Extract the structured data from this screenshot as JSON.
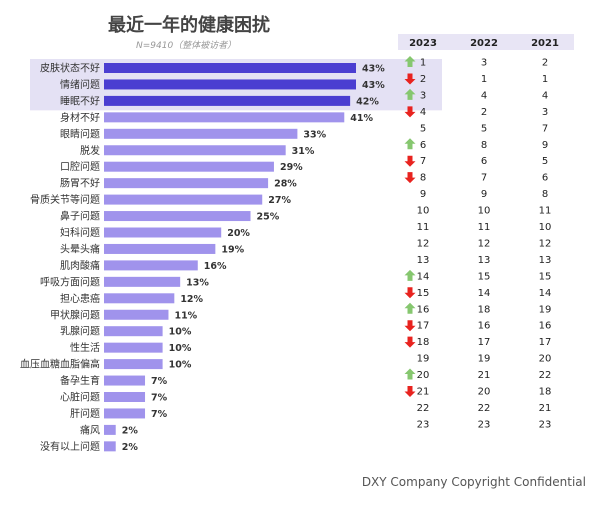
{
  "title": "最近一年的健康困扰",
  "subtitle": "N=9410（整体被访者）",
  "footer": "DXY Company Copyright Confidential",
  "colors": {
    "highlight_bar": "#4b3ed1",
    "bar": "#a093ec",
    "highlight_bg": "#e4e1f4",
    "header_bg": "#e8e5f5",
    "up": "#86c76f",
    "down": "#e8231f"
  },
  "chart_data": {
    "type": "bar",
    "orientation": "horizontal",
    "categories": [
      "皮肤状态不好",
      "情绪问题",
      "睡眠不好",
      "身材不好",
      "眼睛问题",
      "脱发",
      "口腔问题",
      "肠胃不好",
      "骨质关节等问题",
      "鼻子问题",
      "妇科问题",
      "头晕头痛",
      "肌肉酸痛",
      "呼吸方面问题",
      "担心患癌",
      "甲状腺问题",
      "乳腺问题",
      "性生活",
      "血压血糖血脂偏高",
      "备孕生育",
      "心脏问题",
      "肝问题",
      "痛风",
      "没有以上问题"
    ],
    "values": [
      43,
      43,
      42,
      41,
      33,
      31,
      29,
      28,
      27,
      25,
      20,
      19,
      16,
      13,
      12,
      11,
      10,
      10,
      10,
      7,
      7,
      7,
      2,
      2
    ],
    "value_labels": [
      "43%",
      "43%",
      "42%",
      "41%",
      "33%",
      "31%",
      "29%",
      "28%",
      "27%",
      "25%",
      "20%",
      "19%",
      "16%",
      "13%",
      "12%",
      "11%",
      "10%",
      "10%",
      "10%",
      "7%",
      "7%",
      "7%",
      "2%",
      "2%"
    ],
    "highlighted": [
      0,
      1,
      2
    ],
    "xlim": [
      0,
      43
    ]
  },
  "rank_table": {
    "headers": [
      "2023",
      "2022",
      "2021"
    ],
    "rows": [
      {
        "r2023": "1",
        "r2022": "3",
        "r2021": "2",
        "trend": "up"
      },
      {
        "r2023": "2",
        "r2022": "1",
        "r2021": "1",
        "trend": "down"
      },
      {
        "r2023": "3",
        "r2022": "4",
        "r2021": "4",
        "trend": "up"
      },
      {
        "r2023": "4",
        "r2022": "2",
        "r2021": "3",
        "trend": "down"
      },
      {
        "r2023": "5",
        "r2022": "5",
        "r2021": "7",
        "trend": "none"
      },
      {
        "r2023": "6",
        "r2022": "8",
        "r2021": "9",
        "trend": "up"
      },
      {
        "r2023": "7",
        "r2022": "6",
        "r2021": "5",
        "trend": "down"
      },
      {
        "r2023": "8",
        "r2022": "7",
        "r2021": "6",
        "trend": "down"
      },
      {
        "r2023": "9",
        "r2022": "9",
        "r2021": "8",
        "trend": "none"
      },
      {
        "r2023": "10",
        "r2022": "10",
        "r2021": "11",
        "trend": "none"
      },
      {
        "r2023": "11",
        "r2022": "11",
        "r2021": "10",
        "trend": "none"
      },
      {
        "r2023": "12",
        "r2022": "12",
        "r2021": "12",
        "trend": "none"
      },
      {
        "r2023": "13",
        "r2022": "13",
        "r2021": "13",
        "trend": "none"
      },
      {
        "r2023": "14",
        "r2022": "15",
        "r2021": "15",
        "trend": "up"
      },
      {
        "r2023": "15",
        "r2022": "14",
        "r2021": "14",
        "trend": "down"
      },
      {
        "r2023": "16",
        "r2022": "18",
        "r2021": "19",
        "trend": "up"
      },
      {
        "r2023": "17",
        "r2022": "16",
        "r2021": "16",
        "trend": "down"
      },
      {
        "r2023": "18",
        "r2022": "17",
        "r2021": "17",
        "trend": "down"
      },
      {
        "r2023": "19",
        "r2022": "19",
        "r2021": "20",
        "trend": "none"
      },
      {
        "r2023": "20",
        "r2022": "21",
        "r2021": "22",
        "trend": "up"
      },
      {
        "r2023": "21",
        "r2022": "20",
        "r2021": "18",
        "trend": "down"
      },
      {
        "r2023": "22",
        "r2022": "22",
        "r2021": "21",
        "trend": "none"
      },
      {
        "r2023": "23",
        "r2022": "23",
        "r2021": "23",
        "trend": "none"
      }
    ]
  }
}
